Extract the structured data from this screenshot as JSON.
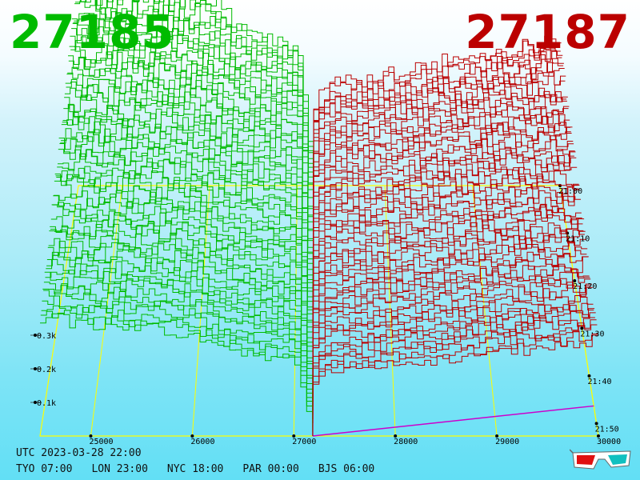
{
  "prices": {
    "bid": "27185",
    "ask": "27187"
  },
  "footer": {
    "utc": "UTC 2023-03-28 22:00",
    "zones": [
      "TYO 07:00",
      "LON 23:00",
      "NYC 18:00",
      "PAR 00:00",
      "BJS 06:00"
    ]
  },
  "colors": {
    "bid": "#00bb00",
    "ask": "#bb0000",
    "grid": "#ffff00",
    "center": "#cc00cc"
  },
  "icon": "3d-glasses-icon",
  "chart_data": {
    "type": "area",
    "price_ticks": [
      25000,
      26000,
      27000,
      28000,
      29000,
      30000
    ],
    "price_labels": [
      "25000",
      "26000",
      "27000",
      "28000",
      "29000",
      "30000"
    ],
    "depth_ticks": [
      100,
      200,
      300
    ],
    "depth_labels": [
      "0.1k",
      "0.2k",
      "0.3k"
    ],
    "time_labels": [
      "21:00",
      "21:10",
      "21:20",
      "21:30",
      "21:40",
      "21:50"
    ],
    "xlim": [
      24500,
      30000
    ],
    "ylim": [
      0,
      850
    ],
    "mid_price": 27186,
    "series": [
      {
        "name": "27185",
        "side": "bid",
        "x": [
          24500,
          25000,
          25500,
          26000,
          26300,
          26700,
          27000,
          27100,
          27185
        ],
        "y": [
          650,
          620,
          600,
          560,
          480,
          440,
          420,
          200,
          0
        ]
      },
      {
        "name": "27187",
        "side": "ask",
        "x": [
          27187,
          27250,
          27400,
          28000,
          28500,
          29000,
          29500,
          30000
        ],
        "y": [
          0,
          250,
          310,
          330,
          360,
          390,
          420,
          450
        ]
      }
    ]
  }
}
